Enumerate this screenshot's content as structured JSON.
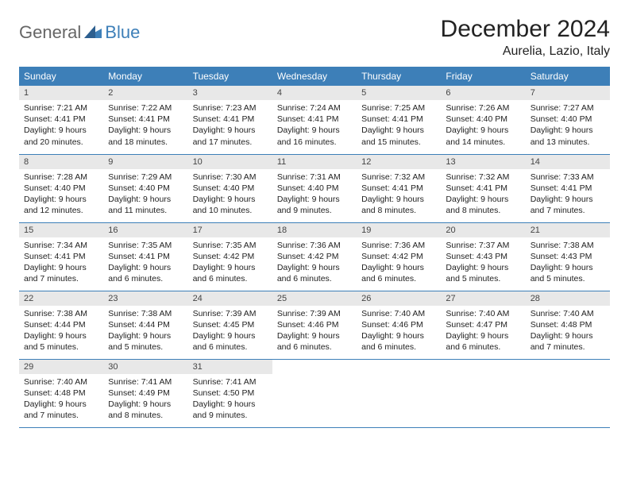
{
  "logo": {
    "text1": "General",
    "text2": "Blue"
  },
  "title": "December 2024",
  "location": "Aurelia, Lazio, Italy",
  "colors": {
    "header_bg": "#3d7fb8",
    "header_text": "#ffffff",
    "daynum_bg": "#e8e8e8",
    "row_border": "#3d7fb8",
    "body_text": "#222222",
    "logo_gray": "#666666",
    "logo_blue": "#3d7fb8",
    "page_bg": "#ffffff"
  },
  "fonts": {
    "title_size_pt": 22,
    "location_size_pt": 12,
    "th_size_pt": 9,
    "daynum_size_pt": 8.5,
    "info_size_pt": 8
  },
  "weekdays": [
    "Sunday",
    "Monday",
    "Tuesday",
    "Wednesday",
    "Thursday",
    "Friday",
    "Saturday"
  ],
  "weeks": [
    [
      {
        "n": "1",
        "sr": "7:21 AM",
        "ss": "4:41 PM",
        "dl": "9 hours and 20 minutes."
      },
      {
        "n": "2",
        "sr": "7:22 AM",
        "ss": "4:41 PM",
        "dl": "9 hours and 18 minutes."
      },
      {
        "n": "3",
        "sr": "7:23 AM",
        "ss": "4:41 PM",
        "dl": "9 hours and 17 minutes."
      },
      {
        "n": "4",
        "sr": "7:24 AM",
        "ss": "4:41 PM",
        "dl": "9 hours and 16 minutes."
      },
      {
        "n": "5",
        "sr": "7:25 AM",
        "ss": "4:41 PM",
        "dl": "9 hours and 15 minutes."
      },
      {
        "n": "6",
        "sr": "7:26 AM",
        "ss": "4:40 PM",
        "dl": "9 hours and 14 minutes."
      },
      {
        "n": "7",
        "sr": "7:27 AM",
        "ss": "4:40 PM",
        "dl": "9 hours and 13 minutes."
      }
    ],
    [
      {
        "n": "8",
        "sr": "7:28 AM",
        "ss": "4:40 PM",
        "dl": "9 hours and 12 minutes."
      },
      {
        "n": "9",
        "sr": "7:29 AM",
        "ss": "4:40 PM",
        "dl": "9 hours and 11 minutes."
      },
      {
        "n": "10",
        "sr": "7:30 AM",
        "ss": "4:40 PM",
        "dl": "9 hours and 10 minutes."
      },
      {
        "n": "11",
        "sr": "7:31 AM",
        "ss": "4:40 PM",
        "dl": "9 hours and 9 minutes."
      },
      {
        "n": "12",
        "sr": "7:32 AM",
        "ss": "4:41 PM",
        "dl": "9 hours and 8 minutes."
      },
      {
        "n": "13",
        "sr": "7:32 AM",
        "ss": "4:41 PM",
        "dl": "9 hours and 8 minutes."
      },
      {
        "n": "14",
        "sr": "7:33 AM",
        "ss": "4:41 PM",
        "dl": "9 hours and 7 minutes."
      }
    ],
    [
      {
        "n": "15",
        "sr": "7:34 AM",
        "ss": "4:41 PM",
        "dl": "9 hours and 7 minutes."
      },
      {
        "n": "16",
        "sr": "7:35 AM",
        "ss": "4:41 PM",
        "dl": "9 hours and 6 minutes."
      },
      {
        "n": "17",
        "sr": "7:35 AM",
        "ss": "4:42 PM",
        "dl": "9 hours and 6 minutes."
      },
      {
        "n": "18",
        "sr": "7:36 AM",
        "ss": "4:42 PM",
        "dl": "9 hours and 6 minutes."
      },
      {
        "n": "19",
        "sr": "7:36 AM",
        "ss": "4:42 PM",
        "dl": "9 hours and 6 minutes."
      },
      {
        "n": "20",
        "sr": "7:37 AM",
        "ss": "4:43 PM",
        "dl": "9 hours and 5 minutes."
      },
      {
        "n": "21",
        "sr": "7:38 AM",
        "ss": "4:43 PM",
        "dl": "9 hours and 5 minutes."
      }
    ],
    [
      {
        "n": "22",
        "sr": "7:38 AM",
        "ss": "4:44 PM",
        "dl": "9 hours and 5 minutes."
      },
      {
        "n": "23",
        "sr": "7:38 AM",
        "ss": "4:44 PM",
        "dl": "9 hours and 5 minutes."
      },
      {
        "n": "24",
        "sr": "7:39 AM",
        "ss": "4:45 PM",
        "dl": "9 hours and 6 minutes."
      },
      {
        "n": "25",
        "sr": "7:39 AM",
        "ss": "4:46 PM",
        "dl": "9 hours and 6 minutes."
      },
      {
        "n": "26",
        "sr": "7:40 AM",
        "ss": "4:46 PM",
        "dl": "9 hours and 6 minutes."
      },
      {
        "n": "27",
        "sr": "7:40 AM",
        "ss": "4:47 PM",
        "dl": "9 hours and 6 minutes."
      },
      {
        "n": "28",
        "sr": "7:40 AM",
        "ss": "4:48 PM",
        "dl": "9 hours and 7 minutes."
      }
    ],
    [
      {
        "n": "29",
        "sr": "7:40 AM",
        "ss": "4:48 PM",
        "dl": "9 hours and 7 minutes."
      },
      {
        "n": "30",
        "sr": "7:41 AM",
        "ss": "4:49 PM",
        "dl": "9 hours and 8 minutes."
      },
      {
        "n": "31",
        "sr": "7:41 AM",
        "ss": "4:50 PM",
        "dl": "9 hours and 9 minutes."
      },
      null,
      null,
      null,
      null
    ]
  ],
  "labels": {
    "sunrise": "Sunrise:",
    "sunset": "Sunset:",
    "daylight": "Daylight:"
  }
}
